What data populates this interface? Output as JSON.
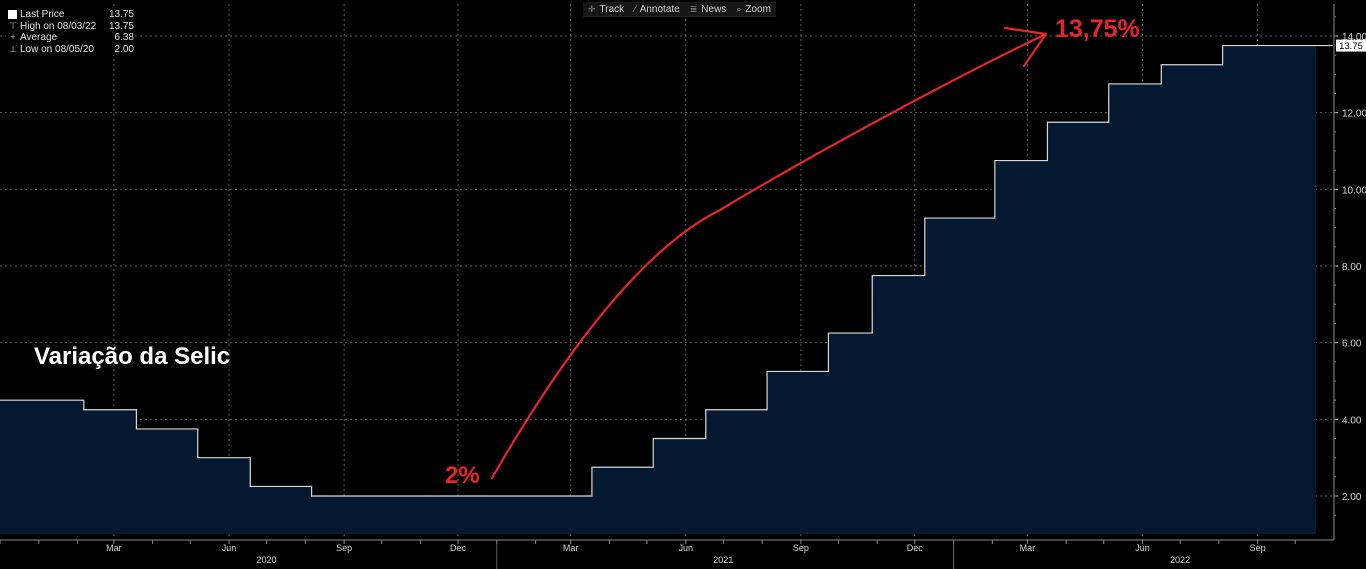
{
  "toolbar": {
    "items": [
      {
        "label": "Track",
        "icon": "crosshair-icon"
      },
      {
        "label": "Annotate",
        "icon": "pencil-icon"
      },
      {
        "label": "News",
        "icon": "news-icon"
      },
      {
        "label": "Zoom",
        "icon": "magnifier-icon"
      }
    ]
  },
  "legend": {
    "rows": [
      {
        "label": "Last Price",
        "value": "13.75"
      },
      {
        "label": "High on 08/03/22",
        "value": "13.75"
      },
      {
        "label": "Average",
        "value": "6.38"
      },
      {
        "label": "Low on 08/05/20",
        "value": "2.00"
      }
    ]
  },
  "overlay": {
    "title": "Variação da Selic",
    "annotation_start": "2%",
    "annotation_end": "13,75%"
  },
  "chart_data": {
    "type": "area",
    "title": "Variação da Selic",
    "xlabel": "",
    "ylabel": "",
    "x_range": [
      "2019-12-01",
      "2022-11-01"
    ],
    "ylim": [
      1,
      15
    ],
    "grid": true,
    "y_ticks": [
      "2.00",
      "4.00",
      "6.00",
      "8.00",
      "10.00",
      "12.00",
      "14.00"
    ],
    "x_month_ticks": [
      {
        "date": "2020-03-01",
        "label": "Mar"
      },
      {
        "date": "2020-06-01",
        "label": "Jun"
      },
      {
        "date": "2020-09-01",
        "label": "Sep"
      },
      {
        "date": "2020-12-01",
        "label": "Dec"
      },
      {
        "date": "2021-03-01",
        "label": "Mar"
      },
      {
        "date": "2021-06-01",
        "label": "Jun"
      },
      {
        "date": "2021-09-01",
        "label": "Sep"
      },
      {
        "date": "2021-12-01",
        "label": "Dec"
      },
      {
        "date": "2022-03-01",
        "label": "Mar"
      },
      {
        "date": "2022-06-01",
        "label": "Jun"
      },
      {
        "date": "2022-09-01",
        "label": "Sep"
      }
    ],
    "x_year_ticks": [
      {
        "date": "2020-07-01",
        "label": "2020"
      },
      {
        "date": "2021-07-01",
        "label": "2021"
      },
      {
        "date": "2022-07-01",
        "label": "2022"
      }
    ],
    "last_value_label": "13.75",
    "series": [
      {
        "values": [
          {
            "date": "2019-12-01",
            "value": 4.5
          },
          {
            "date": "2020-02-06",
            "value": 4.25
          },
          {
            "date": "2020-03-19",
            "value": 3.75
          },
          {
            "date": "2020-05-07",
            "value": 3.0
          },
          {
            "date": "2020-06-18",
            "value": 2.25
          },
          {
            "date": "2020-08-06",
            "value": 2.0
          },
          {
            "date": "2021-03-18",
            "value": 2.75
          },
          {
            "date": "2021-05-06",
            "value": 3.5
          },
          {
            "date": "2021-06-17",
            "value": 4.25
          },
          {
            "date": "2021-08-05",
            "value": 5.25
          },
          {
            "date": "2021-09-23",
            "value": 6.25
          },
          {
            "date": "2021-10-28",
            "value": 7.75
          },
          {
            "date": "2021-12-09",
            "value": 9.25
          },
          {
            "date": "2022-02-03",
            "value": 10.75
          },
          {
            "date": "2022-03-17",
            "value": 11.75
          },
          {
            "date": "2022-05-05",
            "value": 12.75
          },
          {
            "date": "2022-06-16",
            "value": 13.25
          },
          {
            "date": "2022-08-04",
            "value": 13.75
          },
          {
            "date": "2022-10-31",
            "value": 13.75
          }
        ]
      }
    ]
  },
  "colors": {
    "background": "#000000",
    "area_fill": "#04182f",
    "line": "#d9d9d9",
    "grid": "#5a5a5a",
    "axis_text": "#d6d6d6",
    "annotation": "#e8242b"
  }
}
